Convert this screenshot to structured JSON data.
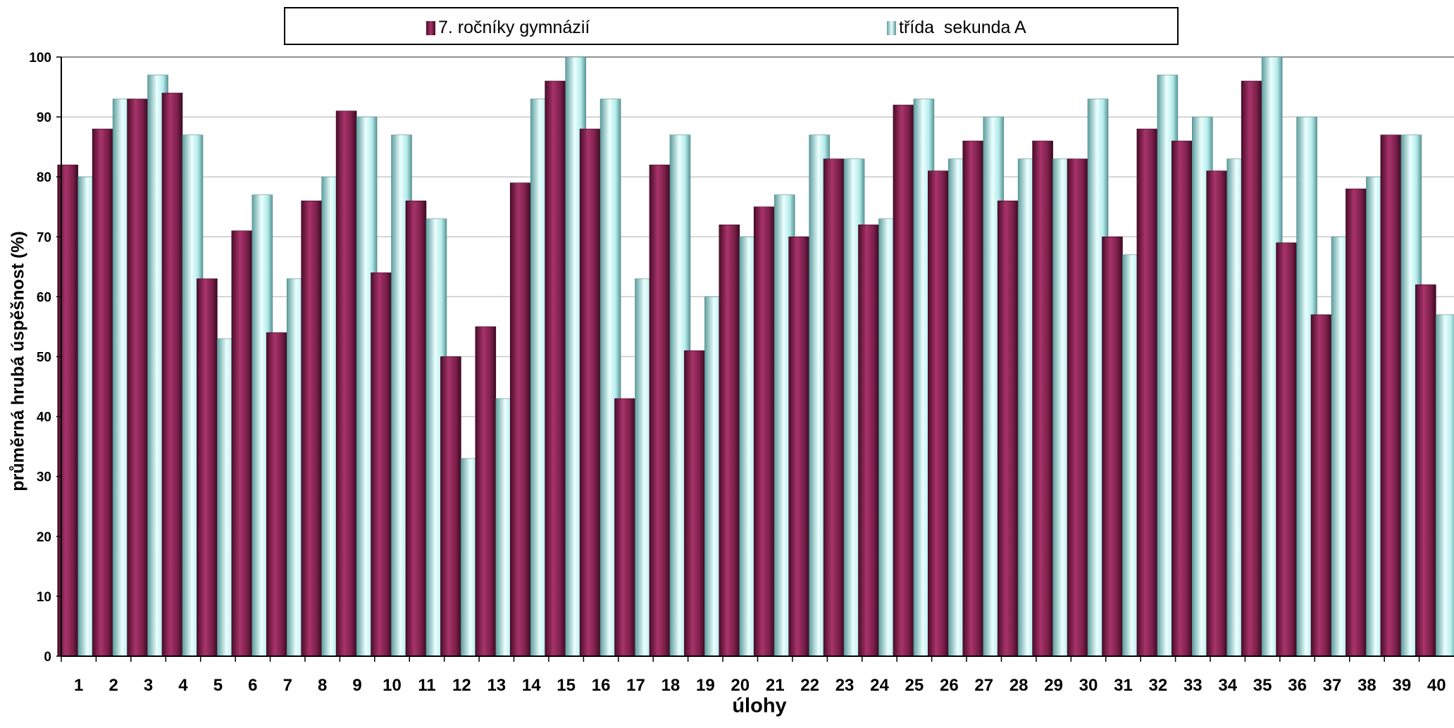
{
  "chart_data": {
    "type": "bar",
    "xlabel": "úlohy",
    "ylabel": "průměrná hrubá úspěšnost (%)",
    "ylim": [
      0,
      100
    ],
    "yticks": [
      0,
      10,
      20,
      30,
      40,
      50,
      60,
      70,
      80,
      90,
      100
    ],
    "grid": true,
    "legend_position": "top",
    "categories": [
      "1",
      "2",
      "3",
      "4",
      "5",
      "6",
      "7",
      "8",
      "9",
      "10",
      "11",
      "12",
      "13",
      "14",
      "15",
      "16",
      "17",
      "18",
      "19",
      "20",
      "21",
      "22",
      "23",
      "24",
      "25",
      "26",
      "27",
      "28",
      "29",
      "30",
      "31",
      "32",
      "33",
      "34",
      "35",
      "36",
      "37",
      "38",
      "39",
      "40"
    ],
    "series": [
      {
        "name": "7. ročníky gymnázií",
        "color": "#7b1f4b",
        "values": [
          82,
          88,
          93,
          94,
          63,
          71,
          54,
          76,
          91,
          64,
          76,
          50,
          55,
          79,
          96,
          88,
          43,
          82,
          51,
          72,
          75,
          70,
          83,
          72,
          92,
          81,
          86,
          76,
          86,
          83,
          70,
          88,
          86,
          81,
          96,
          69,
          57,
          78,
          87,
          62
        ]
      },
      {
        "name": "třída  sekunda A",
        "color": "#b6ecec",
        "values": [
          80,
          93,
          97,
          87,
          53,
          77,
          63,
          80,
          90,
          87,
          73,
          33,
          43,
          93,
          100,
          93,
          63,
          87,
          60,
          70,
          77,
          87,
          83,
          73,
          93,
          83,
          90,
          83,
          83,
          93,
          67,
          97,
          90,
          83,
          100,
          90,
          70,
          80,
          87,
          57
        ]
      }
    ]
  }
}
